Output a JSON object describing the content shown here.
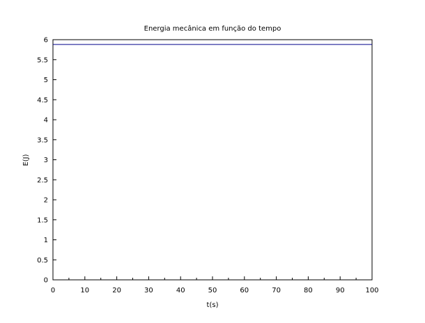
{
  "chart_data": {
    "type": "line",
    "title": "Energia mecânica em função do tempo",
    "xlabel": "t(s)",
    "ylabel": "E(J)",
    "xlim": [
      0,
      100
    ],
    "ylim": [
      0,
      6
    ],
    "xticks": [
      "0",
      "10",
      "20",
      "30",
      "40",
      "50",
      "60",
      "70",
      "80",
      "90",
      "100"
    ],
    "yticks": [
      "0",
      "0.5",
      "1",
      "1.5",
      "2",
      "2.5",
      "3",
      "3.5",
      "4",
      "4.5",
      "5",
      "5.5",
      "6"
    ],
    "grid": false,
    "legend": "none",
    "series": [
      {
        "x": [
          0,
          100
        ],
        "y": [
          5.88,
          5.88
        ],
        "color": "#00008b"
      }
    ]
  }
}
